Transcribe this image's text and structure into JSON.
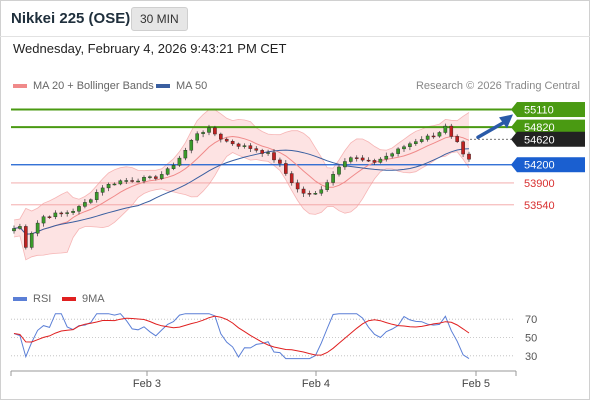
{
  "header": {
    "title": "Nikkei 225 (OSE)",
    "timeframe": "30 MIN",
    "timestamp": "Wednesday, February 4, 2026 9:43:21 PM CET"
  },
  "legend": {
    "items": [
      {
        "label": "MA 20 + Bollinger Bands",
        "color": "#f08a8a"
      },
      {
        "label": "MA 50",
        "color": "#3a5fa0"
      }
    ],
    "credit": "Research © 2026 Trading Central"
  },
  "rsi_legend": {
    "items": [
      {
        "label": "RSI",
        "color": "#5b7fd6"
      },
      {
        "label": "9MA",
        "color": "#e02020"
      }
    ]
  },
  "chart_data": [
    {
      "type": "candlestick",
      "ylim": [
        52300,
        55300
      ],
      "x_ticks": [
        "Feb 3",
        "Feb 4",
        "Feb 5"
      ],
      "current_price": 54620,
      "levels": [
        {
          "label": "55110",
          "value": 55110,
          "kind": "resistance",
          "color": "#4a9a12"
        },
        {
          "label": "54820",
          "value": 54820,
          "kind": "resistance",
          "color": "#4a9a12"
        },
        {
          "label": "54620",
          "value": 54620,
          "kind": "last",
          "color": "#222222"
        },
        {
          "label": "54200",
          "value": 54200,
          "kind": "pivot",
          "color": "#1a5fd0"
        },
        {
          "label": "53900",
          "value": 53900,
          "kind": "support",
          "color": "#d83030"
        },
        {
          "label": "53540",
          "value": 53540,
          "kind": "support",
          "color": "#d83030"
        }
      ],
      "projection": "up",
      "series": [
        {
          "name": "MA 20 + Bollinger Bands"
        },
        {
          "name": "MA 50"
        }
      ]
    },
    {
      "type": "line",
      "ylim": [
        20,
        80
      ],
      "y_ticks": [
        "70",
        "50",
        "30"
      ],
      "series": [
        {
          "name": "RSI"
        },
        {
          "name": "9MA"
        }
      ]
    }
  ]
}
